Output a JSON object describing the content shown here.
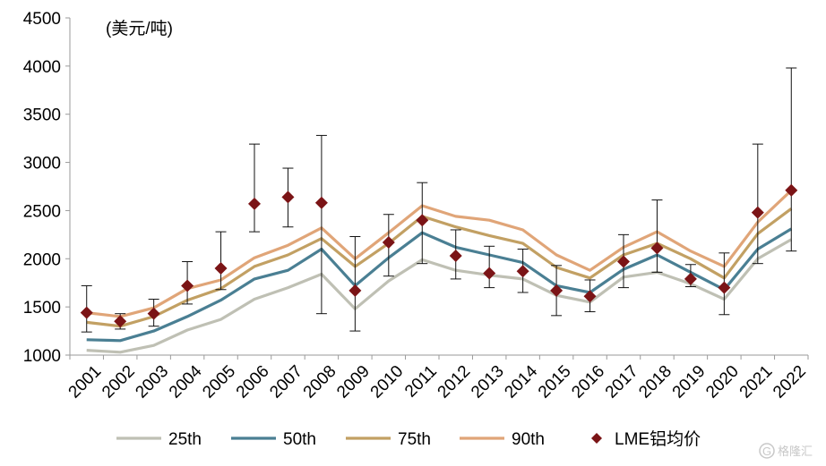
{
  "chart_data": {
    "type": "line",
    "unit_label": "(美元/吨)",
    "x": [
      "2001",
      "2002",
      "2003",
      "2004",
      "2005",
      "2006",
      "2007",
      "2008",
      "2009",
      "2010",
      "2011",
      "2012",
      "2013",
      "2014",
      "2015",
      "2016",
      "2017",
      "2018",
      "2019",
      "2020",
      "2021",
      "2022"
    ],
    "ylim": [
      1000,
      4500
    ],
    "yticks": [
      1000,
      1500,
      2000,
      2500,
      3000,
      3500,
      4000,
      4500
    ],
    "grid": false,
    "legend_position": "bottom",
    "series": [
      {
        "name": "25th",
        "color": "#bfc0b4",
        "values": [
          1050,
          1030,
          1100,
          1260,
          1370,
          1580,
          1700,
          1840,
          1480,
          1770,
          1990,
          1880,
          1830,
          1790,
          1620,
          1550,
          1810,
          1860,
          1740,
          1580,
          2000,
          2200
        ]
      },
      {
        "name": "50th",
        "color": "#4a7f93",
        "values": [
          1160,
          1150,
          1250,
          1400,
          1570,
          1790,
          1880,
          2100,
          1720,
          2010,
          2270,
          2120,
          2040,
          1960,
          1720,
          1650,
          1890,
          2040,
          1860,
          1680,
          2100,
          2310
        ]
      },
      {
        "name": "75th",
        "color": "#c2a063",
        "values": [
          1340,
          1300,
          1400,
          1570,
          1690,
          1920,
          2040,
          2210,
          1920,
          2160,
          2440,
          2330,
          2240,
          2160,
          1910,
          1800,
          2040,
          2160,
          2000,
          1800,
          2260,
          2520
        ]
      },
      {
        "name": "90th",
        "color": "#e0a578",
        "values": [
          1440,
          1400,
          1490,
          1690,
          1780,
          2010,
          2140,
          2320,
          2000,
          2270,
          2550,
          2440,
          2400,
          2300,
          2040,
          1880,
          2120,
          2280,
          2080,
          1920,
          2380,
          2710
        ]
      }
    ],
    "price": {
      "name": "LME铝均价",
      "color": "#7b1416",
      "values": [
        1440,
        1350,
        1430,
        1720,
        1900,
        2570,
        2640,
        2580,
        1670,
        2170,
        2400,
        2030,
        1850,
        1870,
        1670,
        1610,
        1970,
        2110,
        1790,
        1700,
        2480,
        2710
      ],
      "low": [
        1240,
        1270,
        1300,
        1530,
        1680,
        2280,
        2330,
        1430,
        1250,
        1820,
        1950,
        1790,
        1700,
        1650,
        1410,
        1450,
        1700,
        1860,
        1710,
        1420,
        1950,
        2080
      ],
      "high": [
        1720,
        1430,
        1580,
        1970,
        2280,
        3190,
        2940,
        3280,
        2230,
        2460,
        2790,
        2300,
        2130,
        2100,
        1930,
        1780,
        2250,
        2610,
        1940,
        2060,
        3190,
        3980
      ]
    }
  },
  "watermark": {
    "symbol": "G",
    "text": "格隆汇"
  }
}
